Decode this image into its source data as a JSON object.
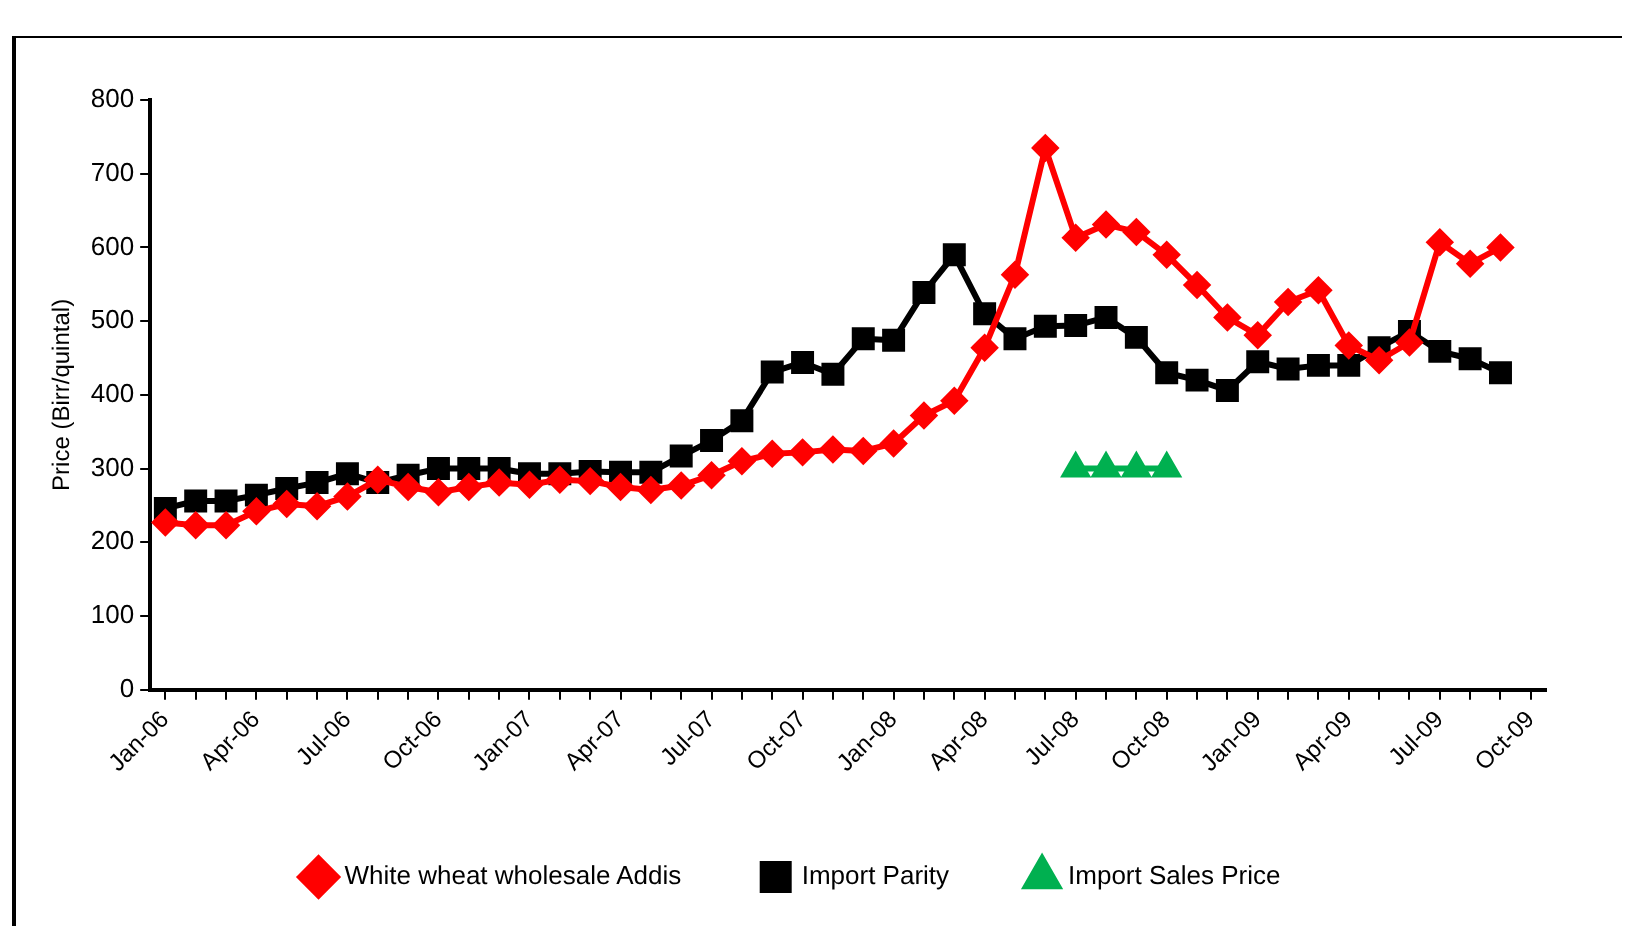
{
  "chart_data": {
    "type": "line",
    "ylabel": "Price (Birr/quintal)",
    "categories": [
      "Jan-06",
      null,
      null,
      "Apr-06",
      null,
      null,
      "Jul-06",
      null,
      null,
      "Oct-06",
      null,
      null,
      "Jan-07",
      null,
      null,
      "Apr-07",
      null,
      null,
      "Jul-07",
      null,
      null,
      "Oct-07",
      null,
      null,
      "Jan-08",
      null,
      null,
      "Apr-08",
      null,
      null,
      "Jul-08",
      null,
      null,
      "Oct-08",
      null,
      null,
      "Jan-09",
      null,
      null,
      "Apr-09",
      null,
      null,
      "Jul-09",
      null,
      null,
      "Oct-09"
    ],
    "series": [
      {
        "name": "White wheat wholesale Addis",
        "color": "#ff0000",
        "marker": "diamond",
        "values": [
          227,
          223,
          223,
          242,
          252,
          249,
          262,
          285,
          275,
          268,
          275,
          281,
          278,
          285,
          283,
          275,
          271,
          277,
          291,
          310,
          320,
          322,
          326,
          324,
          334,
          372,
          392,
          464,
          563,
          735,
          613,
          631,
          621,
          590,
          549,
          505,
          481,
          526,
          542,
          467,
          447,
          471,
          607,
          578,
          600,
          null
        ]
      },
      {
        "name": "Import Parity",
        "color": "#000000",
        "marker": "square",
        "values": [
          246,
          256,
          256,
          264,
          273,
          281,
          293,
          281,
          291,
          300,
          300,
          300,
          293,
          293,
          296,
          295,
          295,
          317,
          338,
          365,
          431,
          444,
          428,
          476,
          474,
          539,
          590,
          510,
          476,
          493,
          494,
          505,
          478,
          430,
          420,
          406,
          445,
          435,
          440,
          440,
          464,
          486,
          459,
          449,
          430,
          null
        ]
      },
      {
        "name": "Import Sales Price",
        "color": "#00b050",
        "marker": "triangle",
        "values": [
          null,
          null,
          null,
          null,
          null,
          null,
          null,
          null,
          null,
          null,
          null,
          null,
          null,
          null,
          null,
          null,
          null,
          null,
          null,
          null,
          null,
          null,
          null,
          null,
          null,
          null,
          null,
          null,
          null,
          null,
          300,
          300,
          300,
          300,
          null,
          null,
          null,
          null,
          null,
          null,
          null,
          null,
          null,
          null,
          null,
          null
        ]
      }
    ],
    "ylim": [
      0,
      800
    ],
    "yticks": [
      0,
      100,
      200,
      300,
      400,
      500,
      600,
      700,
      800
    ],
    "grid": false,
    "legend": "bottom",
    "line_style": "solid"
  }
}
